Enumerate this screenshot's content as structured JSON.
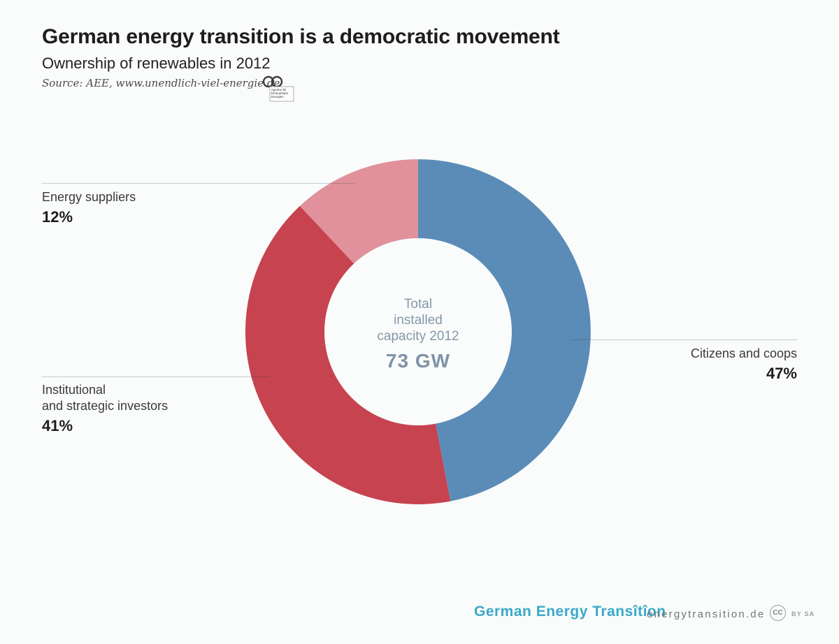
{
  "page": {
    "title": "German energy transition is a democratic movement",
    "subtitle": "Ownership of renewables in 2012",
    "source_text": "Source: AEE, www.unendlich-viel-energie.de",
    "aee_logo_lines": [
      "Agentur für",
      "Erneuerbare",
      "Energien"
    ]
  },
  "chart_data": {
    "type": "pie",
    "donut": true,
    "title": "Ownership of renewables in 2012",
    "start_angle_deg": 0,
    "direction": "clockwise",
    "slices": [
      {
        "label": "Citizens and coops",
        "value": 47,
        "value_label": "47%",
        "color": "#5b8cb8"
      },
      {
        "label": "Institutional and strategic investors",
        "value": 41,
        "value_label": "41%",
        "color": "#c6434f"
      },
      {
        "label": "Energy suppliers",
        "value": 12,
        "value_label": "12%",
        "color": "#e0919c"
      }
    ],
    "center": {
      "line1": "Total",
      "line2": "installed",
      "line3": "capacity 2012",
      "value": "73 GW"
    },
    "legend_position": "callouts"
  },
  "callouts": {
    "energy_suppliers": {
      "label": "Energy suppliers",
      "pct": "12%"
    },
    "citizens": {
      "label": "Citizens and coops",
      "pct": "47%"
    },
    "institutional": {
      "label_line1": "Institutional",
      "label_line2": "and strategic investors",
      "pct": "41%"
    }
  },
  "footer": {
    "brand": "German Energy Transîtîon",
    "website": "energytransition.de",
    "cc_label": "CC",
    "license_label": "BY SA"
  },
  "colors": {
    "background": "#fafcfb",
    "blue": "#5b8cb8",
    "red": "#c6434f",
    "pink": "#e0919c",
    "center_text": "#8497aa",
    "brand_teal": "#3aa9c7",
    "footer_gray": "#6f7678"
  }
}
